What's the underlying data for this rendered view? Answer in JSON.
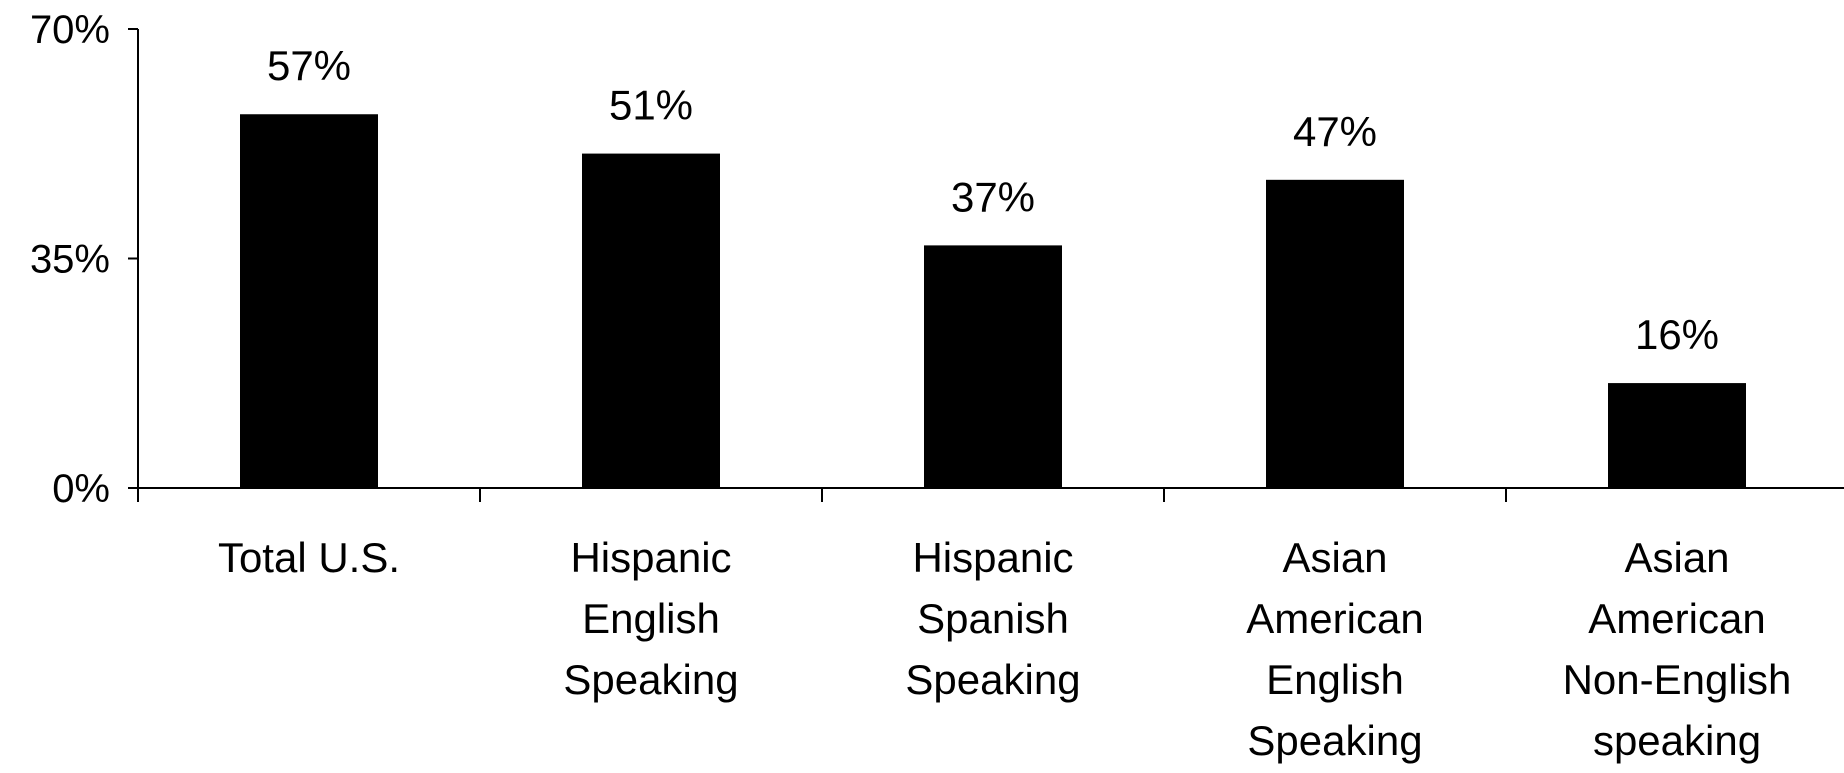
{
  "chart_data": {
    "type": "bar",
    "categories": [
      [
        "Total U.S."
      ],
      [
        "Hispanic",
        "English",
        "Speaking"
      ],
      [
        "Hispanic",
        "Spanish",
        "Speaking"
      ],
      [
        "Asian",
        "American",
        "English",
        "Speaking"
      ],
      [
        "Asian",
        "American",
        "Non-English",
        "speaking"
      ]
    ],
    "values": [
      57,
      51,
      37,
      47,
      16
    ],
    "value_labels": [
      "57%",
      "51%",
      "37%",
      "47%",
      "16%"
    ],
    "ylim": [
      0,
      70
    ],
    "yticks": [
      0,
      35,
      70
    ],
    "ytick_labels": [
      "0%",
      "35%",
      "70%"
    ],
    "bar_color": "#000000",
    "grid": false,
    "legend": "none",
    "title": "",
    "xlabel": "",
    "ylabel": ""
  }
}
